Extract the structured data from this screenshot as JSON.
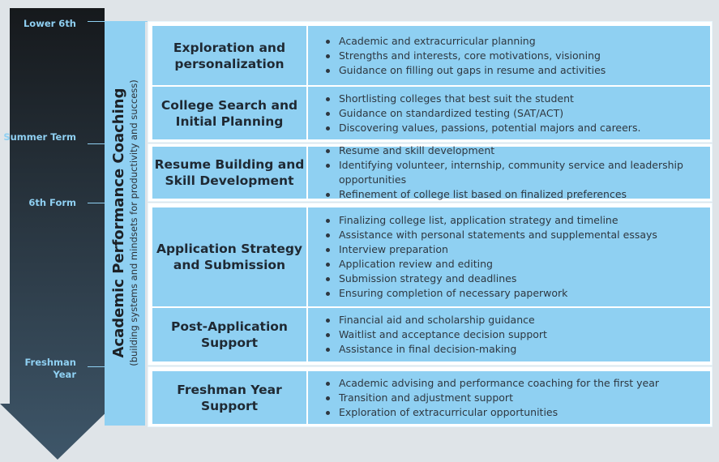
{
  "timeline": {
    "stages": [
      {
        "label": "Lower 6th"
      },
      {
        "label": "Summer Term"
      },
      {
        "label": "6th Form"
      },
      {
        "label": "Freshman Year"
      }
    ]
  },
  "band": {
    "title": "Academic Performance Coaching",
    "subtitle": "(building systems and mindsets for productivity and success)"
  },
  "rows": [
    {
      "title": "Exploration and personalization",
      "items": [
        "Academic and extracurricular planning",
        "Strengths and interests, core motivations, visioning",
        "Guidance on filling out gaps in resume and activities"
      ]
    },
    {
      "title": "College Search and Initial Planning",
      "items": [
        "Shortlisting colleges that best suit the student",
        "Guidance on standardized testing (SAT/ACT)",
        "Discovering values, passions, potential majors and careers."
      ]
    },
    {
      "title": "Resume Building and Skill Development",
      "items": [
        "Resume and skill development",
        "Identifying volunteer, internship, community service and leadership opportunities",
        "Refinement of college list based on finalized preferences"
      ]
    },
    {
      "title": "Application Strategy and Submission",
      "items": [
        "Finalizing college list, application strategy and timeline",
        "Assistance with personal statements and supplemental essays",
        "Interview preparation",
        "Application review and editing",
        "Submission strategy and deadlines",
        "Ensuring completion of necessary paperwork"
      ]
    },
    {
      "title": "Post-Application Support",
      "items": [
        "Financial aid and scholarship guidance",
        "Waitlist and acceptance decision support",
        "Assistance in final decision-making"
      ]
    },
    {
      "title": "Freshman Year Support",
      "items": [
        "Academic advising and performance coaching for the first year",
        "Transition and adjustment support",
        "Exploration of extracurricular opportunities"
      ]
    }
  ],
  "colors": {
    "accent": "#8fd0f2",
    "arrow_top": "#16191c",
    "arrow_bottom": "#3e5669"
  }
}
